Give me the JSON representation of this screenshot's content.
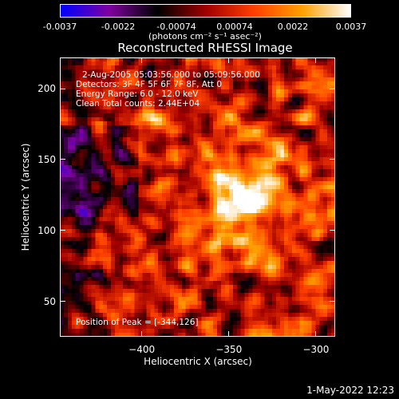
{
  "colorbar": {
    "ticks": [
      "-0.0037",
      "-0.0022",
      "-0.00074",
      "0.00074",
      "0.0022",
      "0.0037"
    ],
    "unit_label": "(photons cm⁻² s⁻¹ asec⁻²)",
    "range": [
      -0.0037,
      0.0037
    ],
    "colormap": [
      "#0000ff",
      "#8000a0",
      "#000000",
      "#a00000",
      "#ff4000",
      "#ffa000",
      "#ffffff"
    ]
  },
  "title": "Reconstructed RHESSI Image",
  "annotations": {
    "time": "2-Aug-2005 05:03:56.000 to 05:09:56.000",
    "detectors": "Detectors: 3F 4F 5F 6F 7F 8F, Att 0",
    "energy": "Energy Range: 6.0 - 12.0 keV",
    "clean": "Clean     Total counts: 2.44E+04",
    "peak": "Position of Peak = [-344,126]"
  },
  "chart_data": {
    "type": "heatmap",
    "title": "Reconstructed RHESSI Image",
    "xlabel": "Heliocentric X (arcsec)",
    "ylabel": "Heliocentric Y (arcsec)",
    "xlim": [
      -447,
      -289
    ],
    "ylim": [
      25,
      222
    ],
    "xticks": [
      -400,
      -350,
      -300
    ],
    "yticks": [
      50,
      100,
      150,
      200
    ],
    "xtick_labels": [
      "−400",
      "−350",
      "−300"
    ],
    "ytick_labels": [
      "50",
      "100",
      "150",
      "200"
    ],
    "peak": [
      -344,
      126
    ],
    "value_range": [
      -0.0037,
      0.0037
    ]
  },
  "timestamp": "1-May-2022 12:23"
}
